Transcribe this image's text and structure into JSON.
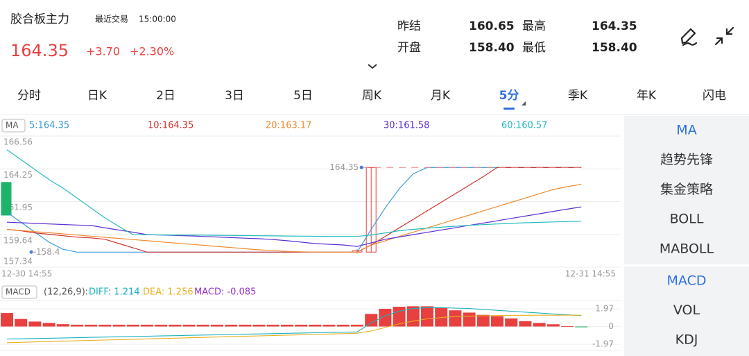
{
  "header": {
    "title": "胶合板主力",
    "trade_label": "最近交易",
    "trade_time": "15:00:00",
    "price": "164.35",
    "change": "+3.70",
    "change_pct": "+2.30%"
  },
  "stats": [
    {
      "label": "昨结",
      "value": "160.65"
    },
    {
      "label": "开盘",
      "value": "158.40"
    },
    {
      "label": "最高",
      "value": "164.35"
    },
    {
      "label": "最低",
      "value": "158.40"
    }
  ],
  "tabs": [
    "分时",
    "日K",
    "2日",
    "3日",
    "5日",
    "周K",
    "月K",
    "5分",
    "季K",
    "年K",
    "闪电"
  ],
  "active_tab": 7,
  "side_menu": {
    "main": [
      "MA",
      "趋势先锋",
      "集金策略",
      "BOLL",
      "MABOLL"
    ],
    "sub": [
      "MACD",
      "VOL",
      "KDJ"
    ]
  },
  "chart_data": [
    {
      "type": "candlestick",
      "legend_title": "MA",
      "categories": [
        "12-30 14:55",
        null,
        null,
        null,
        null,
        null,
        null,
        null,
        null,
        null,
        null,
        null,
        null,
        null,
        null,
        null,
        null,
        null,
        null,
        null,
        null,
        null,
        null,
        null,
        null,
        null,
        null,
        null,
        null,
        null,
        null,
        null,
        null,
        null,
        null,
        null,
        null,
        null,
        null,
        null,
        null,
        "12-31 14:55"
      ],
      "ohlc": [
        [
          163.3,
          163.3,
          161.0,
          161.0
        ],
        null,
        null,
        null,
        null,
        null,
        null,
        null,
        null,
        null,
        null,
        null,
        null,
        null,
        null,
        null,
        null,
        null,
        null,
        null,
        null,
        null,
        null,
        null,
        null,
        [
          158.4,
          158.6,
          158.3,
          158.5
        ],
        [
          158.4,
          164.35,
          158.4,
          164.35
        ],
        null,
        null,
        null,
        null,
        null,
        null,
        null,
        null,
        null,
        null,
        null,
        null,
        null,
        null,
        null
      ],
      "series": [
        {
          "name": "5:164.35",
          "color": "#3a9ad9",
          "values": [
            161.2,
            160.5,
            159.8,
            159.1,
            158.6,
            158.4,
            158.4,
            158.4,
            158.4,
            158.4,
            158.4,
            158.4,
            158.4,
            158.4,
            158.4,
            158.4,
            158.4,
            158.4,
            158.4,
            158.4,
            158.4,
            158.4,
            158.4,
            158.4,
            158.4,
            158.4,
            160.0,
            161.5,
            162.85,
            163.9,
            164.35,
            164.35,
            164.35,
            164.35,
            164.35,
            164.35,
            164.35,
            164.35,
            164.35,
            164.35,
            164.35,
            164.35
          ]
        },
        {
          "name": "10:164.35",
          "color": "#d0312d",
          "values": [
            160.0,
            159.9,
            159.75,
            159.65,
            159.55,
            159.45,
            159.4,
            159.3,
            159.0,
            158.7,
            158.4,
            158.4,
            158.4,
            158.4,
            158.4,
            158.4,
            158.4,
            158.4,
            158.4,
            158.4,
            158.4,
            158.4,
            158.4,
            158.4,
            158.4,
            158.4,
            158.9,
            159.5,
            160.1,
            160.7,
            161.3,
            161.9,
            162.5,
            163.1,
            163.7,
            164.35,
            164.35,
            164.35,
            164.35,
            164.35,
            164.35,
            164.35
          ]
        },
        {
          "name": "20:163.17",
          "color": "#f08a30",
          "values": [
            160.0,
            159.92,
            159.84,
            159.76,
            159.68,
            159.6,
            159.52,
            159.44,
            159.36,
            159.28,
            159.2,
            159.12,
            159.04,
            158.96,
            158.88,
            158.8,
            158.72,
            158.64,
            158.56,
            158.5,
            158.45,
            158.42,
            158.4,
            158.4,
            158.4,
            158.4,
            158.9,
            159.2,
            159.5,
            159.8,
            160.1,
            160.4,
            160.7,
            161.0,
            161.3,
            161.6,
            161.9,
            162.2,
            162.5,
            162.8,
            163.0,
            163.17
          ]
        },
        {
          "name": "30:161.58",
          "color": "#5a2fd0",
          "values": [
            160.5,
            160.46,
            160.42,
            160.38,
            160.34,
            160.3,
            160.27,
            160.1,
            159.95,
            159.8,
            159.63,
            159.6,
            159.57,
            159.54,
            159.5,
            159.46,
            159.42,
            159.38,
            159.34,
            159.28,
            159.2,
            159.1,
            159.0,
            158.95,
            158.9,
            158.8,
            159.05,
            159.3,
            159.46,
            159.63,
            159.79,
            159.95,
            160.11,
            160.28,
            160.44,
            160.6,
            160.77,
            160.93,
            161.09,
            161.26,
            161.42,
            161.58
          ]
        },
        {
          "name": "60:160.57",
          "color": "#22bcc0",
          "values": [
            165.6,
            164.9,
            164.2,
            163.5,
            162.9,
            162.2,
            161.5,
            160.8,
            160.2,
            159.63,
            159.62,
            159.61,
            159.6,
            159.6,
            159.59,
            159.58,
            159.57,
            159.56,
            159.55,
            159.54,
            159.53,
            159.52,
            159.51,
            159.5,
            159.5,
            159.5,
            159.6,
            159.75,
            159.9,
            160.0,
            160.08,
            160.15,
            160.22,
            160.28,
            160.33,
            160.38,
            160.42,
            160.46,
            160.49,
            160.52,
            160.55,
            160.57
          ]
        }
      ],
      "ylim": [
        157.34,
        166.56
      ],
      "yticks": [
        166.56,
        164.25,
        161.95,
        159.64,
        157.34
      ],
      "max_label": 164.35,
      "min_label": 158.4,
      "up_color": "#e8403f",
      "down_color": "#1db46a"
    },
    {
      "type": "macd",
      "legend_title": "MACD",
      "params": "(12,26,9):",
      "histogram": {
        "name": "MACD: -0.085",
        "color": "#9b30c8",
        "values": [
          1.5,
          0.84,
          0.55,
          0.4,
          0.26,
          0.2,
          0.2,
          0.2,
          0.2,
          0.2,
          0.2,
          0.2,
          0.2,
          0.2,
          0.2,
          0.2,
          0.2,
          0.2,
          0.2,
          0.2,
          0.2,
          0.2,
          0.2,
          0.2,
          0.2,
          0.2,
          1.4,
          1.97,
          2.2,
          2.25,
          2.25,
          2.1,
          1.8,
          1.55,
          1.3,
          1.15,
          0.9,
          0.6,
          0.4,
          0.25,
          0.05,
          -0.085
        ]
      },
      "series": [
        {
          "name": "DIFF: 1.214",
          "color": "#1ab0c0",
          "values": [
            -1.4,
            -1.368,
            -1.336,
            -1.304,
            -1.272,
            -1.24,
            -1.208,
            -1.176,
            -1.144,
            -1.112,
            -1.08,
            -1.048,
            -1.016,
            -0.984,
            -0.952,
            -0.92,
            -0.888,
            -0.856,
            -0.824,
            -0.792,
            -0.76,
            -0.728,
            -0.696,
            -0.664,
            -0.632,
            -0.6,
            0.4,
            1.2,
            1.7,
            2.0,
            2.1,
            2.1,
            2.05,
            2.0,
            1.9,
            1.8,
            1.7,
            1.6,
            1.5,
            1.4,
            1.3,
            1.214
          ]
        },
        {
          "name": "DEA: 1.256",
          "color": "#e8b020",
          "values": [
            -1.8,
            -1.758,
            -1.716,
            -1.674,
            -1.632,
            -1.59,
            -1.548,
            -1.506,
            -1.464,
            -1.422,
            -1.38,
            -1.338,
            -1.296,
            -1.254,
            -1.212,
            -1.17,
            -1.128,
            -1.086,
            -1.044,
            -1.002,
            -0.96,
            -0.918,
            -0.876,
            -0.834,
            -0.792,
            -0.75,
            -0.5,
            -0.1,
            0.3,
            0.6,
            0.85,
            1.0,
            1.1,
            1.15,
            1.2,
            1.22,
            1.24,
            1.25,
            1.26,
            1.26,
            1.26,
            1.256
          ]
        }
      ],
      "ylim": [
        -1.97,
        1.97
      ],
      "yticks": [
        1.97,
        0,
        -1.97
      ],
      "up_color": "#e8403f",
      "down_color": "#1db46a"
    }
  ]
}
